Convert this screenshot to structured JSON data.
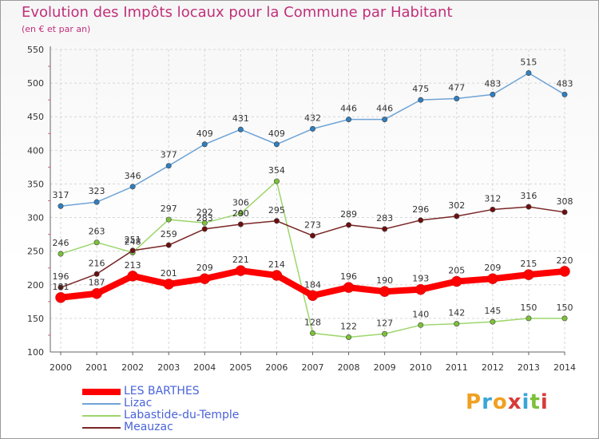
{
  "title": "Evolution des Impôts locaux pour la Commune par Habitant",
  "subtitle": "(en € et par an)",
  "brand": {
    "letters": [
      "P",
      "r",
      "o",
      "x",
      "i",
      "t",
      "i"
    ],
    "colors": [
      "#f0a020",
      "#3aa5d8",
      "#f0a020",
      "#d83a3a",
      "#3aa5d8",
      "#7cc13a",
      "#d83a3a"
    ]
  },
  "chart_data": {
    "type": "line",
    "categories": [
      "2000",
      "2001",
      "2002",
      "2003",
      "2004",
      "2005",
      "2006",
      "2007",
      "2008",
      "2009",
      "2010",
      "2011",
      "2012",
      "2013",
      "2014"
    ],
    "ylim": [
      100,
      550
    ],
    "yticks": [
      100,
      150,
      200,
      250,
      300,
      350,
      400,
      450,
      500,
      550
    ],
    "grid": true,
    "legend_position": "bottom-left",
    "series": [
      {
        "name": "LES BARTHES",
        "color": "#ff0000",
        "marker": "#ff0000",
        "emphasis": true,
        "values": [
          181,
          187,
          213,
          201,
          209,
          221,
          214,
          184,
          196,
          190,
          193,
          205,
          209,
          215,
          220
        ],
        "labels": [
          "181",
          "187",
          "213",
          "201",
          "209",
          "221",
          "214",
          "184",
          "196",
          "190",
          "193",
          "205",
          "209",
          "215",
          "220"
        ]
      },
      {
        "name": "Lizac",
        "color": "#6fa3d6",
        "marker": "#2f7fc0",
        "emphasis": false,
        "values": [
          317,
          323,
          346,
          377,
          409,
          431,
          409,
          432,
          446,
          446,
          475,
          477,
          483,
          515,
          483
        ],
        "labels": [
          "317",
          "323",
          "346",
          "377",
          "409",
          "431",
          "409",
          "432",
          "446",
          "446",
          "475",
          "477",
          "483",
          "515",
          "483"
        ]
      },
      {
        "name": "Labastide-du-Temple",
        "color": "#9dd66b",
        "marker": "#7cc13a",
        "emphasis": false,
        "values": [
          246,
          263,
          248,
          297,
          292,
          306,
          354,
          128,
          122,
          127,
          140,
          142,
          145,
          150,
          150
        ],
        "labels": [
          "246",
          "263",
          "248",
          "297",
          "292",
          "306",
          "354",
          "128",
          "122",
          "127",
          "140",
          "142",
          "145",
          "150",
          "150"
        ]
      },
      {
        "name": "Meauzac",
        "color": "#7a2626",
        "marker": "#6e0e0e",
        "emphasis": false,
        "values": [
          196,
          216,
          251,
          259,
          283,
          290,
          295,
          273,
          289,
          283,
          296,
          302,
          312,
          316,
          308
        ],
        "labels": [
          "196",
          "216",
          "251",
          "259",
          "283",
          "290",
          "295",
          "273",
          "289",
          "283",
          "296",
          "302",
          "312",
          "316",
          "308"
        ]
      }
    ]
  }
}
